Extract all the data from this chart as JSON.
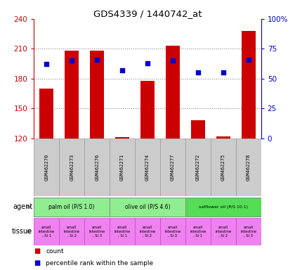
{
  "title": "GDS4339 / 1440742_at",
  "samples": [
    "GSM462270",
    "GSM462273",
    "GSM462276",
    "GSM462271",
    "GSM462274",
    "GSM462277",
    "GSM462272",
    "GSM462275",
    "GSM462278"
  ],
  "counts": [
    170,
    208,
    208,
    121,
    178,
    213,
    138,
    122,
    228
  ],
  "percentiles": [
    62,
    65,
    66,
    57,
    63,
    65,
    55,
    55,
    66
  ],
  "ylim_left": [
    120,
    240
  ],
  "ylim_right": [
    0,
    100
  ],
  "yticks_left": [
    120,
    150,
    180,
    210,
    240
  ],
  "yticks_right": [
    0,
    25,
    50,
    75,
    100
  ],
  "ytick_right_labels": [
    "0",
    "25",
    "50",
    "75",
    "100%"
  ],
  "agent_groups": [
    {
      "label": "palm oil (P/S 1.0)",
      "span": [
        0,
        3
      ],
      "color": "#90EE90"
    },
    {
      "label": "olive oil (P/S 4.6)",
      "span": [
        3,
        6
      ],
      "color": "#90EE90"
    },
    {
      "label": "safflower oil (P/S 10.1)",
      "span": [
        6,
        9
      ],
      "color": "#55DD55"
    }
  ],
  "tissue_labels": [
    "small\nintestine\n, SI 1",
    "small\nintestine\n, SI 2",
    "small\nintestine\n, SI 3",
    "small\nintestine\n, SI 1",
    "small\nintestine\n, SI 2",
    "small\nintestine\n, SI 3",
    "small\nintestine\n, SI 1",
    "small\nintestine\n, SI 2",
    "small\nintestine\n, SI 3"
  ],
  "bar_color": "#CC0000",
  "marker_color": "#0000CC",
  "bar_width": 0.55,
  "axis_left_color": "#CC0000",
  "axis_right_color": "#0000CC",
  "sample_bg_color": "#CCCCCC",
  "tissue_bg_color": "#EE82EE",
  "tissue_border_color": "#CC44CC",
  "agent_border_color": "#888888"
}
